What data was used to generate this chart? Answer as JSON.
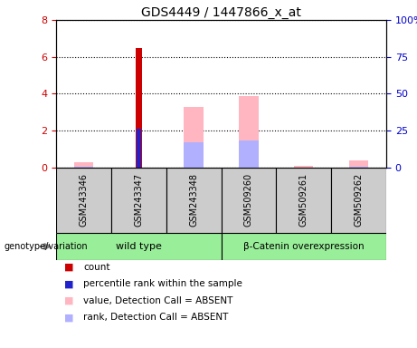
{
  "title": "GDS4449 / 1447866_x_at",
  "samples": [
    "GSM243346",
    "GSM243347",
    "GSM243348",
    "GSM509260",
    "GSM509261",
    "GSM509262"
  ],
  "wt_label": "wild type",
  "bc_label": "β-Catenin overexpression",
  "count_values": [
    0,
    6.5,
    0,
    0,
    0,
    0
  ],
  "percentile_rank_values": [
    0,
    2.1,
    0,
    0,
    0,
    0
  ],
  "value_absent_values": [
    0.3,
    0,
    3.3,
    3.9,
    0.1,
    0.4
  ],
  "rank_absent_values": [
    0.05,
    0,
    1.35,
    1.45,
    0,
    0.05
  ],
  "ylim": [
    0,
    8
  ],
  "yticks_left": [
    0,
    2,
    4,
    6,
    8
  ],
  "yticks_right": [
    0,
    25,
    50,
    75,
    100
  ],
  "count_color": "#cc0000",
  "percentile_color": "#2222cc",
  "value_absent_color": "#ffb6c1",
  "rank_absent_color": "#b0b0ff",
  "bg_plot": "#ffffff",
  "bg_samples": "#cccccc",
  "bg_group": "#99ee99",
  "label_color_left": "#cc0000",
  "label_color_right": "#0000cc",
  "legend_items": [
    {
      "color": "#cc0000",
      "label": "count"
    },
    {
      "color": "#2222cc",
      "label": "percentile rank within the sample"
    },
    {
      "color": "#ffb6c1",
      "label": "value, Detection Call = ABSENT"
    },
    {
      "color": "#b0b0ff",
      "label": "rank, Detection Call = ABSENT"
    }
  ]
}
